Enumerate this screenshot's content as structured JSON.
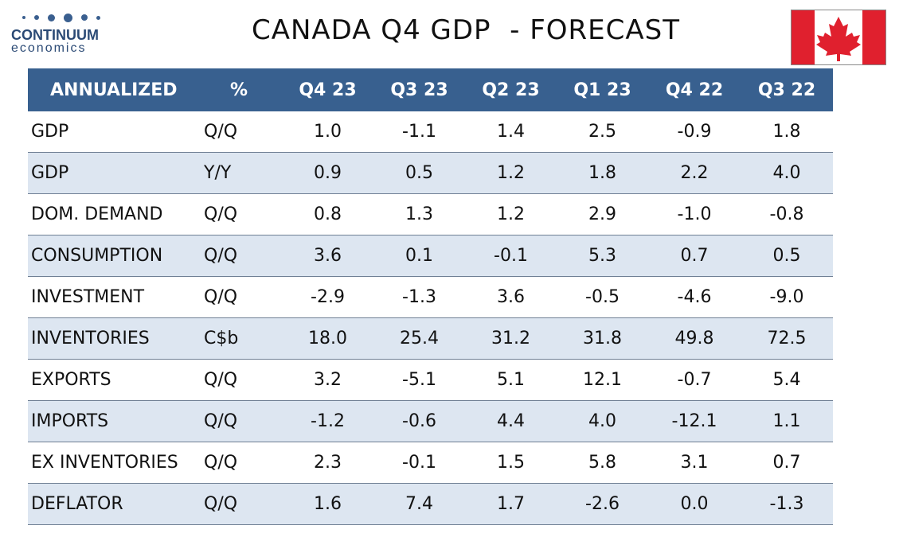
{
  "logo": {
    "name": "CONTINUUM",
    "sub": "economics",
    "color": "#2b4a75"
  },
  "title": "CANADA Q4 GDP  - FORECAST",
  "flag": {
    "icon": "canada-flag-icon",
    "red": "#e0202e",
    "white": "#ffffff"
  },
  "colors": {
    "header_bg": "#38608f",
    "row_shade": "#dde6f1"
  },
  "chart_data": {
    "type": "table",
    "columns": [
      "ANNUALIZED",
      "%",
      "Q4 23",
      "Q3 23",
      "Q2 23",
      "Q1 23",
      "Q4 22",
      "Q3 22"
    ],
    "rows": [
      {
        "label": "GDP",
        "unit": "Q/Q",
        "values": [
          "1.0",
          "-1.1",
          "1.4",
          "2.5",
          "-0.9",
          "1.8"
        ]
      },
      {
        "label": "GDP",
        "unit": "Y/Y",
        "values": [
          "0.9",
          "0.5",
          "1.2",
          "1.8",
          "2.2",
          "4.0"
        ]
      },
      {
        "label": "DOM. DEMAND",
        "unit": "Q/Q",
        "values": [
          "0.8",
          "1.3",
          "1.2",
          "2.9",
          "-1.0",
          "-0.8"
        ]
      },
      {
        "label": "CONSUMPTION",
        "unit": "Q/Q",
        "values": [
          "3.6",
          "0.1",
          "-0.1",
          "5.3",
          "0.7",
          "0.5"
        ]
      },
      {
        "label": "INVESTMENT",
        "unit": "Q/Q",
        "values": [
          "-2.9",
          "-1.3",
          "3.6",
          "-0.5",
          "-4.6",
          "-9.0"
        ]
      },
      {
        "label": "INVENTORIES",
        "unit": "C$b",
        "values": [
          "18.0",
          "25.4",
          "31.2",
          "31.8",
          "49.8",
          "72.5"
        ]
      },
      {
        "label": "EXPORTS",
        "unit": "Q/Q",
        "values": [
          "3.2",
          "-5.1",
          "5.1",
          "12.1",
          "-0.7",
          "5.4"
        ]
      },
      {
        "label": "IMPORTS",
        "unit": "Q/Q",
        "values": [
          "-1.2",
          "-0.6",
          "4.4",
          "4.0",
          "-12.1",
          "1.1"
        ]
      },
      {
        "label": "EX INVENTORIES",
        "unit": "Q/Q",
        "values": [
          "2.3",
          "-0.1",
          "1.5",
          "5.8",
          "3.1",
          "0.7"
        ]
      },
      {
        "label": "DEFLATOR",
        "unit": "Q/Q",
        "values": [
          "1.6",
          "7.4",
          "1.7",
          "-2.6",
          "0.0",
          "-1.3"
        ]
      }
    ]
  }
}
